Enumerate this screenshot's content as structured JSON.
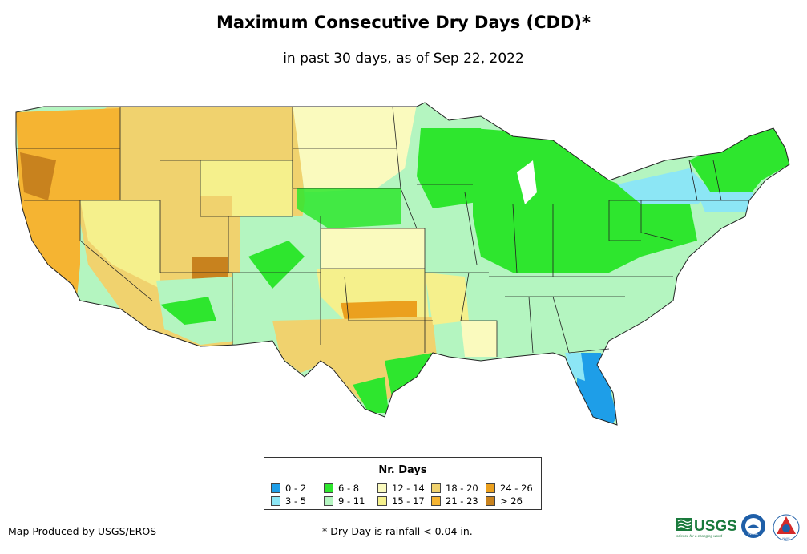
{
  "title": "Maximum Consecutive Dry Days (CDD)*",
  "subtitle": "in past 30 days, as of Sep 22, 2022",
  "legend": {
    "title": "Nr. Days",
    "items": [
      {
        "label": "0 - 2",
        "color": "#1e9ee8"
      },
      {
        "label": "3 - 5",
        "color": "#8ce6f5"
      },
      {
        "label": "6 - 8",
        "color": "#2ee62e"
      },
      {
        "label": "9 - 11",
        "color": "#b4f5c0"
      },
      {
        "label": "12 - 14",
        "color": "#fafabe"
      },
      {
        "label": "15 - 17",
        "color": "#f5f08c"
      },
      {
        "label": "18 - 20",
        "color": "#f0d26e"
      },
      {
        "label": "21 - 23",
        "color": "#f5b432"
      },
      {
        "label": "24 - 26",
        "color": "#eba01e"
      },
      {
        "label": "> 26",
        "color": "#c8821e"
      }
    ]
  },
  "credit": "Map Produced by USGS/EROS",
  "footnote": "* Dry Day is rainfall < 0.04 in.",
  "logos": {
    "usgs_text": "USGS",
    "usgs_tagline": "science for a changing world",
    "noaa_text": "NOAA",
    "nws_text": "NWS",
    "usgs_color": "#1a7a3c",
    "noaa_color": "#1f5fa8",
    "nws_color": "#d42a2a"
  }
}
